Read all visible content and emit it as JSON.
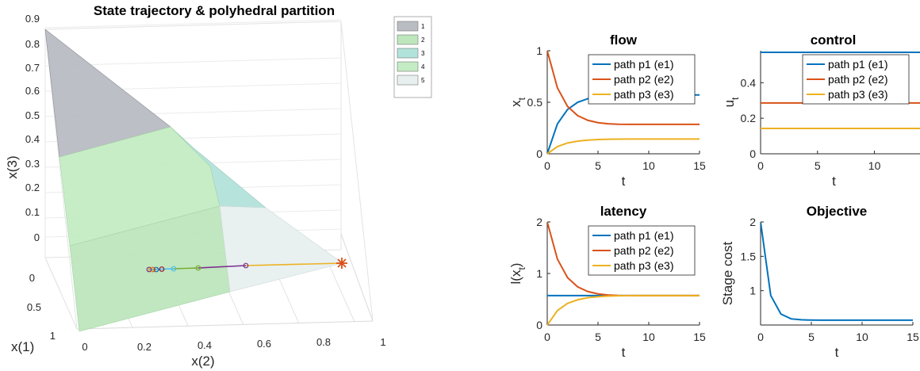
{
  "chart_data": [
    {
      "type": "scatter",
      "title": "State trajectory & polyhedral partition",
      "xlabel": "x(2)",
      "ylabel": "x(1)",
      "zlabel": "x(3)",
      "x_ticks": [
        "0",
        "0.2",
        "0.4",
        "0.6",
        "0.8",
        "1"
      ],
      "y_ticks": [
        "0",
        "0.5",
        "1"
      ],
      "z_ticks": [
        "0",
        "0.1",
        "0.2",
        "0.3",
        "0.4",
        "0.5",
        "0.6",
        "0.7",
        "0.8",
        "0.9"
      ],
      "grid": true,
      "legend_position": "top-right",
      "legend": [
        {
          "label": "1",
          "color": "#b9bcc3"
        },
        {
          "label": "2",
          "color": "#bde6bd"
        },
        {
          "label": "3",
          "color": "#b2e3da"
        },
        {
          "label": "4",
          "color": "#c4ecc4"
        },
        {
          "label": "5",
          "color": "#e7efef"
        }
      ],
      "regions": [
        {
          "label": "1",
          "color": "#b9bcc3"
        },
        {
          "label": "2",
          "color": "#bde6bd"
        },
        {
          "label": "3",
          "color": "#b2e3da"
        },
        {
          "label": "4",
          "color": "#c4ecc4"
        },
        {
          "label": "5",
          "color": "#e7efef"
        }
      ],
      "trajectory_colors": [
        "#7e2f8e",
        "#77ac30",
        "#4dbeee",
        "#a2142f",
        "#0072bd",
        "#d95319",
        "#edb120"
      ]
    },
    {
      "type": "line",
      "title": "flow",
      "xlabel": "t",
      "ylabel": "x_t",
      "ylabel_main": "x",
      "ylabel_sub": "t",
      "xlim": [
        0,
        15
      ],
      "ylim": [
        0,
        1
      ],
      "x_ticks": [
        "0",
        "5",
        "10",
        "15"
      ],
      "y_ticks": [
        "0",
        "0.5",
        "1"
      ],
      "x": [
        0,
        1,
        2,
        3,
        4,
        5,
        6,
        7,
        8,
        9,
        10,
        11,
        12,
        13,
        14,
        15
      ],
      "series": [
        {
          "name": "path p1 (e1)",
          "color": "#0072bd",
          "values": [
            0,
            0.29,
            0.43,
            0.5,
            0.535,
            0.553,
            0.562,
            0.566,
            0.568,
            0.569,
            0.57,
            0.571,
            0.571,
            0.571,
            0.571,
            0.571
          ]
        },
        {
          "name": "path p2 (e2)",
          "color": "#d95319",
          "values": [
            1.0,
            0.64,
            0.46,
            0.37,
            0.325,
            0.302,
            0.291,
            0.287,
            0.286,
            0.286,
            0.286,
            0.286,
            0.286,
            0.286,
            0.286,
            0.286
          ]
        },
        {
          "name": "path p3 (e3)",
          "color": "#edb120",
          "values": [
            0,
            0.07,
            0.105,
            0.123,
            0.133,
            0.138,
            0.141,
            0.142,
            0.143,
            0.143,
            0.143,
            0.143,
            0.143,
            0.143,
            0.143,
            0.143
          ]
        }
      ]
    },
    {
      "type": "line",
      "title": "control",
      "xlabel": "t",
      "ylabel": "u_t",
      "ylabel_main": "u",
      "ylabel_sub": "t",
      "xlim": [
        0,
        14
      ],
      "ylim": [
        0,
        0.58
      ],
      "x_ticks": [
        "0",
        "5",
        "10"
      ],
      "y_ticks": [
        "0",
        "0.2",
        "0.4"
      ],
      "x": [
        0,
        14
      ],
      "series": [
        {
          "name": "path p1 (e1)",
          "color": "#0072bd",
          "values": [
            0.571,
            0.571
          ]
        },
        {
          "name": "path p2 (e2)",
          "color": "#d95319",
          "values": [
            0.286,
            0.286
          ]
        },
        {
          "name": "path p3 (e3)",
          "color": "#edb120",
          "values": [
            0.143,
            0.143
          ]
        }
      ]
    },
    {
      "type": "line",
      "title": "latency",
      "xlabel": "t",
      "ylabel": "l(x_t)",
      "ylabel_main": "l(x",
      "ylabel_sub": "t",
      "ylabel_tail": ")",
      "xlim": [
        0,
        15
      ],
      "ylim": [
        0,
        2
      ],
      "x_ticks": [
        "0",
        "5",
        "10",
        "15"
      ],
      "y_ticks": [
        "0",
        "1",
        "2"
      ],
      "x": [
        0,
        1,
        2,
        3,
        4,
        5,
        6,
        7,
        8,
        9,
        10,
        11,
        12,
        13,
        14,
        15
      ],
      "series": [
        {
          "name": "path p1 (e1)",
          "color": "#0072bd",
          "values": [
            0.571,
            0.571,
            0.571,
            0.571,
            0.571,
            0.571,
            0.571,
            0.571,
            0.571,
            0.571,
            0.571,
            0.571,
            0.571,
            0.571,
            0.571,
            0.571
          ]
        },
        {
          "name": "path p2 (e2)",
          "color": "#d95319",
          "values": [
            2.0,
            1.28,
            0.92,
            0.74,
            0.65,
            0.604,
            0.582,
            0.574,
            0.572,
            0.571,
            0.571,
            0.571,
            0.571,
            0.571,
            0.571,
            0.571
          ]
        },
        {
          "name": "path p3 (e3)",
          "color": "#edb120",
          "values": [
            0,
            0.28,
            0.42,
            0.49,
            0.53,
            0.55,
            0.562,
            0.567,
            0.57,
            0.571,
            0.571,
            0.571,
            0.571,
            0.571,
            0.571,
            0.571
          ]
        }
      ]
    },
    {
      "type": "line",
      "title": "Objective",
      "xlabel": "t",
      "ylabel": "Stage cost",
      "xlim": [
        0,
        15
      ],
      "ylim": [
        0.5,
        2
      ],
      "x_ticks": [
        "0",
        "5",
        "10",
        "15"
      ],
      "y_ticks": [
        "1",
        "1.5",
        "2"
      ],
      "y_tick_values": [
        1,
        1.5,
        2
      ],
      "x": [
        0,
        1,
        2,
        3,
        4,
        5,
        6,
        7,
        8,
        9,
        10,
        11,
        12,
        13,
        14,
        15
      ],
      "series": [
        {
          "color": "#0072bd",
          "values": [
            2.0,
            0.93,
            0.66,
            0.59,
            0.576,
            0.572,
            0.571,
            0.571,
            0.571,
            0.571,
            0.571,
            0.571,
            0.571,
            0.571,
            0.571,
            0.571
          ]
        }
      ]
    }
  ]
}
